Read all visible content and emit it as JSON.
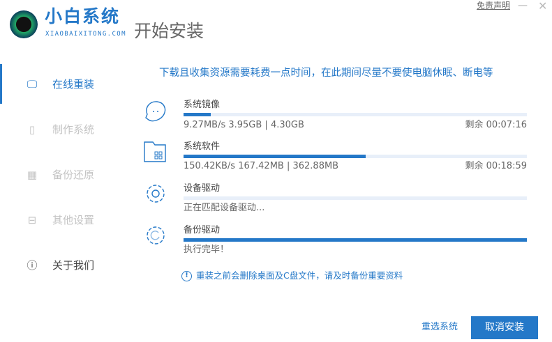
{
  "brand": {
    "name": "小白系统",
    "domain": "XIAOBAIXITONG.COM"
  },
  "header": {
    "title": "开始安装",
    "disclaimer": "免责声明",
    "minimize": "—",
    "close": "✕"
  },
  "sidebar": {
    "items": [
      {
        "label": "在线重装",
        "icon": "monitor-icon",
        "active": true
      },
      {
        "label": "制作系统",
        "icon": "usb-icon",
        "active": false
      },
      {
        "label": "备份还原",
        "icon": "grid-icon",
        "active": false
      },
      {
        "label": "其他设置",
        "icon": "briefcase-icon",
        "active": false
      },
      {
        "label": "关于我们",
        "icon": "info-icon",
        "active": false
      }
    ]
  },
  "main": {
    "notice": "下载且收集资源需要耗费一点时间，在此期间尽量不要使电脑休眠、断电等",
    "tasks": [
      {
        "name": "系统镜像",
        "icon": "cloud-face-icon",
        "progress": 8,
        "info": "9.27MB/s 3.95GB | 4.30GB",
        "remaining": "剩余 00:07:16"
      },
      {
        "name": "系统软件",
        "icon": "folder-apps-icon",
        "progress": 53,
        "info": "150.42KB/s 167.42MB | 362.88MB",
        "remaining": "剩余 00:18:59"
      },
      {
        "name": "设备驱动",
        "icon": "gear-icon",
        "progress": 0,
        "info": "正在匹配设备驱动..."
      },
      {
        "name": "备份驱动",
        "icon": "gear-refresh-icon",
        "progress": 100,
        "info": "执行完毕！"
      }
    ],
    "warning": "重装之前会删除桌面及C盘文件，请及时备份重要资料"
  },
  "footer": {
    "reselect": "重选系统",
    "cancel": "取消安装"
  },
  "colors": {
    "accent": "#2478c8",
    "track": "#e8eff9"
  }
}
